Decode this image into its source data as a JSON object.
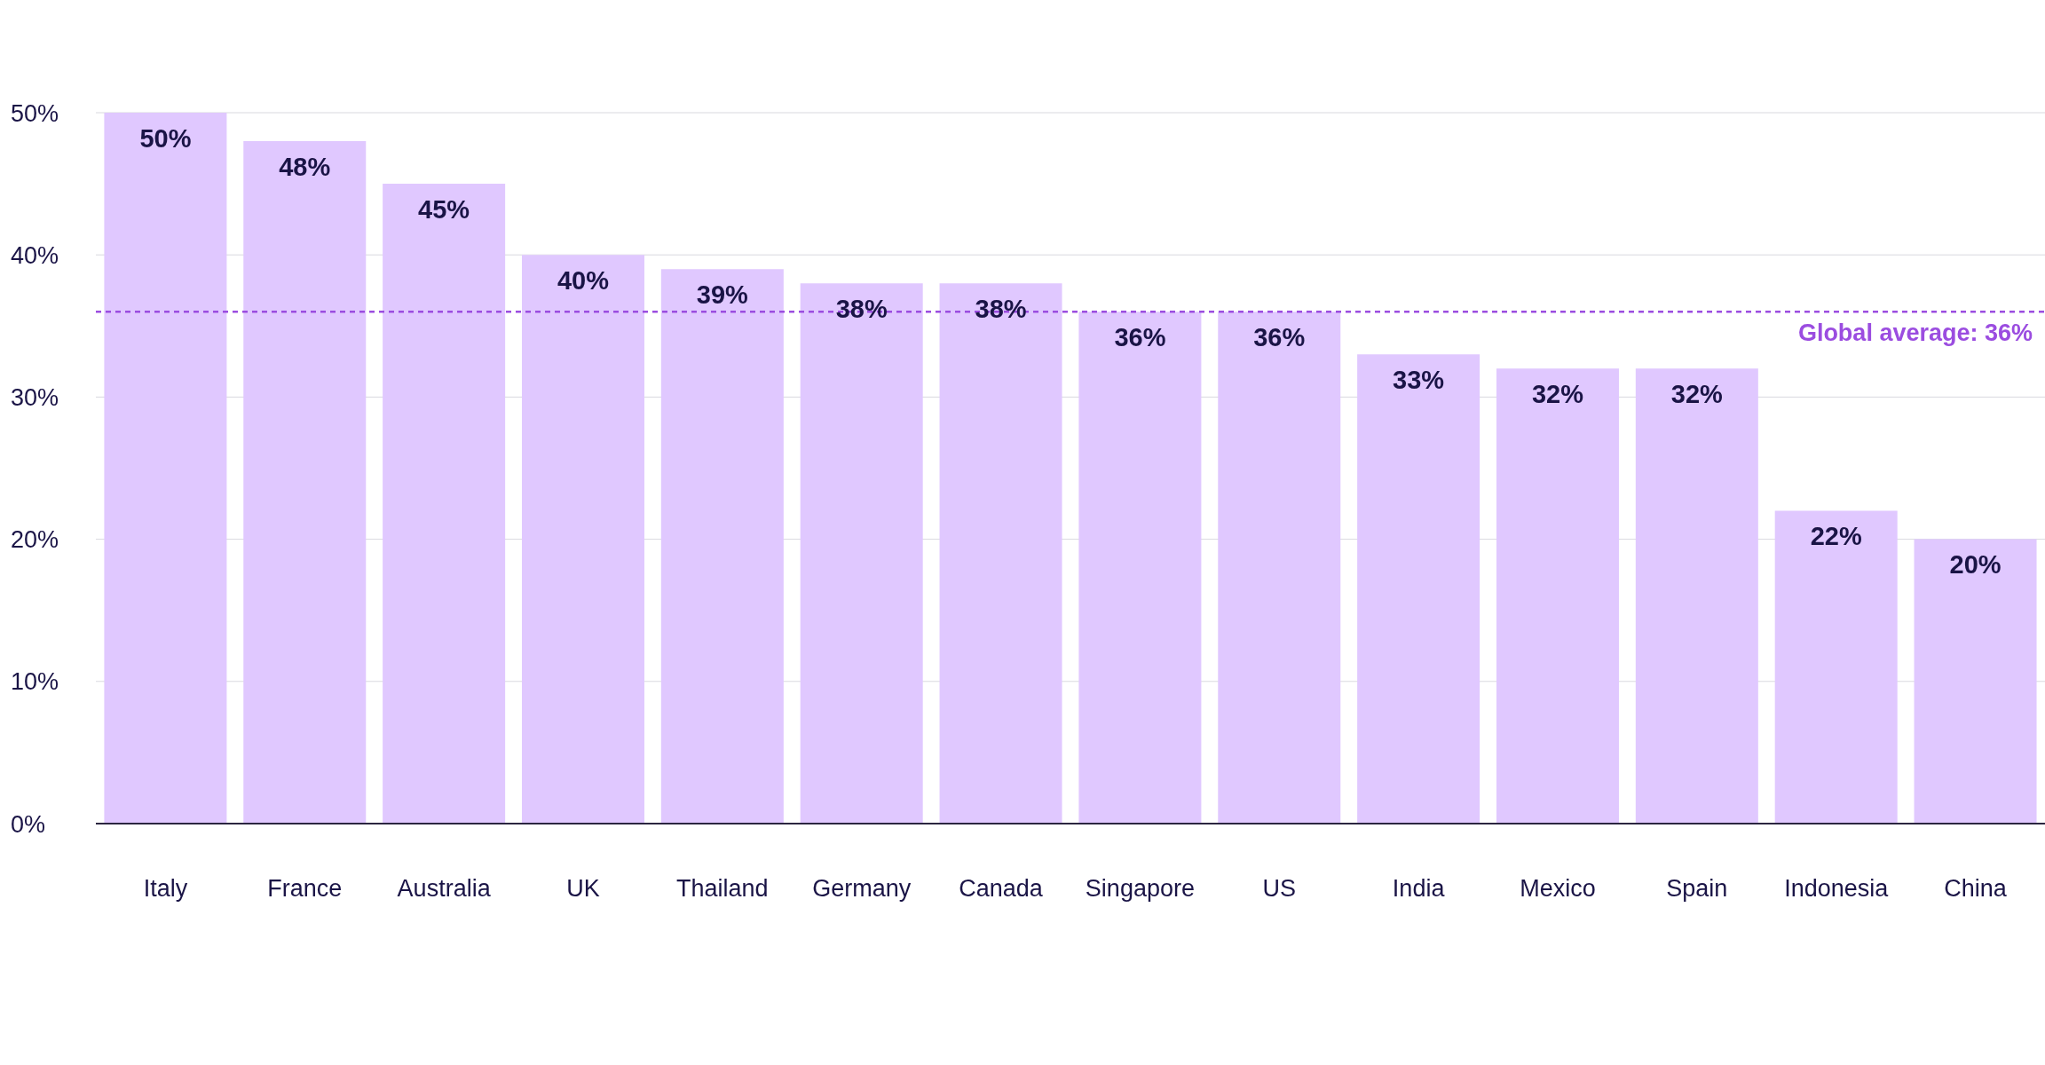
{
  "chart_data": {
    "type": "bar",
    "categories": [
      "Italy",
      "France",
      "Australia",
      "UK",
      "Thailand",
      "Germany",
      "Canada",
      "Singapore",
      "US",
      "India",
      "Mexico",
      "Spain",
      "Indonesia",
      "China"
    ],
    "values": [
      50,
      48,
      45,
      40,
      39,
      38,
      38,
      36,
      36,
      33,
      32,
      32,
      22,
      20
    ],
    "value_labels": [
      "50%",
      "48%",
      "45%",
      "40%",
      "39%",
      "38%",
      "38%",
      "36%",
      "36%",
      "33%",
      "32%",
      "32%",
      "22%",
      "20%"
    ],
    "color": "#e0c8ff",
    "ylim": [
      0,
      50
    ],
    "yticks": [
      {
        "value": 0,
        "label": "0%"
      },
      {
        "value": 10,
        "label": "10%"
      },
      {
        "value": 20,
        "label": "20%"
      },
      {
        "value": 30,
        "label": "30%"
      },
      {
        "value": 40,
        "label": "40%"
      },
      {
        "value": 50,
        "label": "50%"
      }
    ],
    "grid": "y",
    "ref_lines": [
      {
        "axis": "y",
        "value": 36,
        "label": "Global average: 36%",
        "color": "#9b4de0",
        "line_style": "dashed"
      }
    ]
  }
}
